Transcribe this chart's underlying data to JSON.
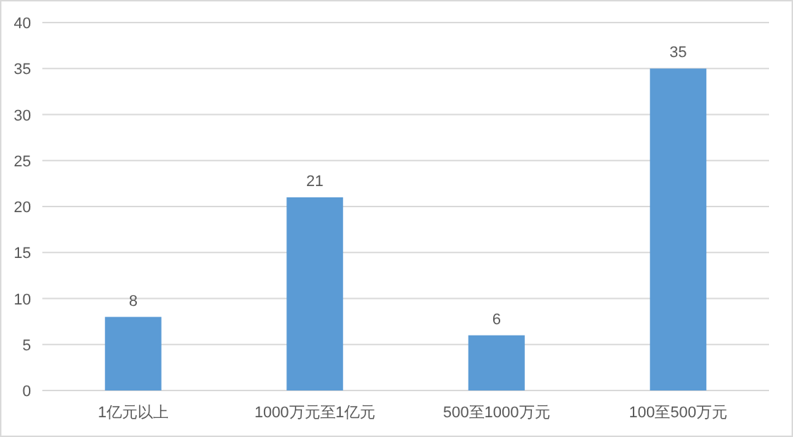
{
  "chart_data": {
    "type": "bar",
    "categories": [
      "1亿元以上",
      "1000万元至1亿元",
      "500至1000万元",
      "100至500万元"
    ],
    "values": [
      8,
      21,
      6,
      35
    ],
    "color": "#5b9bd5",
    "ylim": [
      0,
      40
    ],
    "yticks": [
      0,
      5,
      10,
      15,
      20,
      25,
      30,
      35,
      40
    ],
    "grid": "y",
    "data_labels": true
  }
}
